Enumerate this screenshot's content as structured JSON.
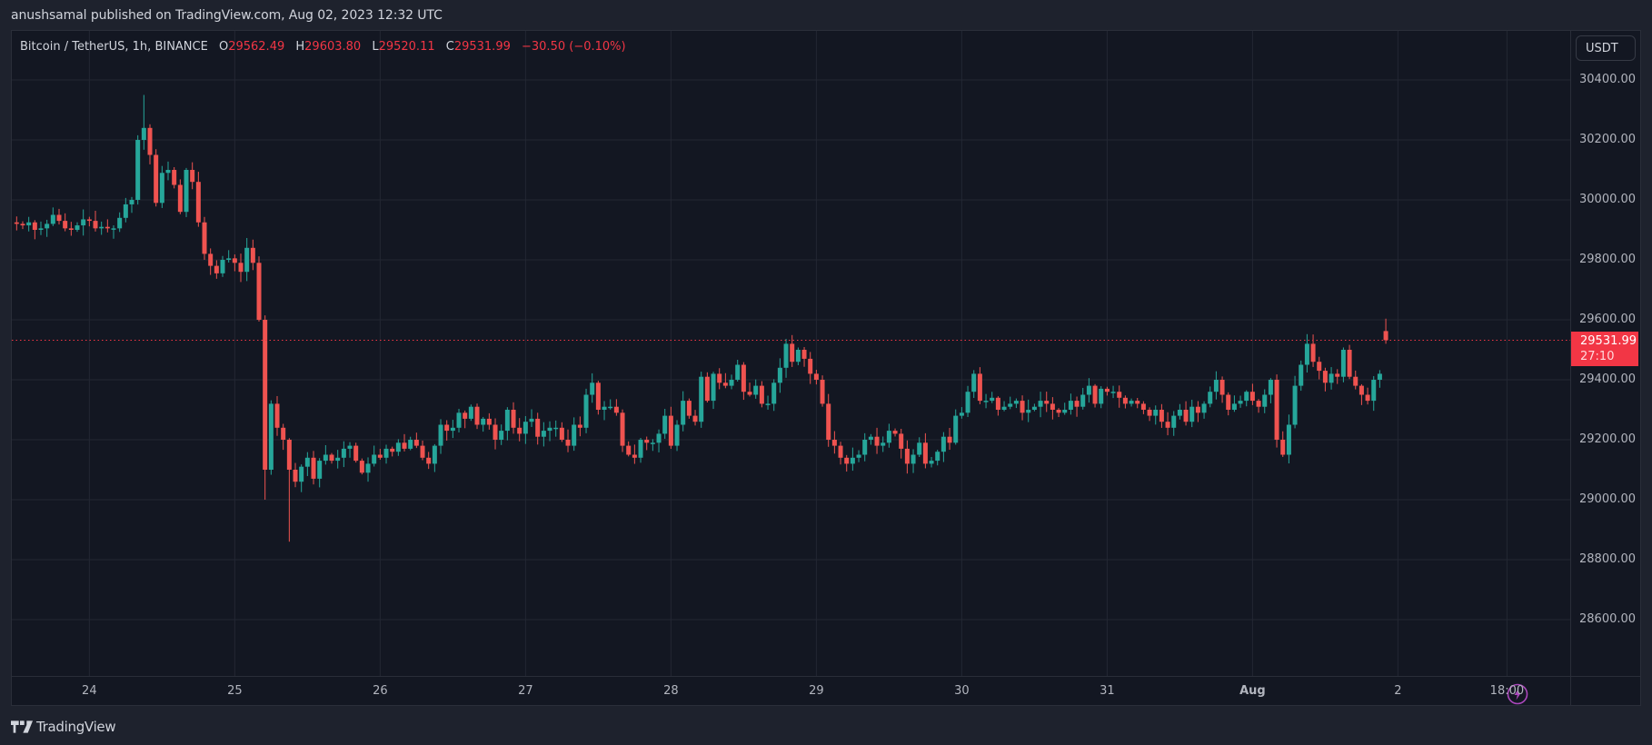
{
  "header": {
    "published_text": "anushsamal published on TradingView.com, Aug 02, 2023 12:32 UTC"
  },
  "legend": {
    "symbol": "Bitcoin / TetherUS, 1h, BINANCE",
    "open_key": "O",
    "open": "29562.49",
    "high_key": "H",
    "high": "29603.80",
    "low_key": "L",
    "low": "29520.11",
    "close_key": "C",
    "close": "29531.99",
    "change": "−30.50 (−0.10%)"
  },
  "currency_button": "USDT",
  "last_price": {
    "value": "29531.99",
    "countdown": "27:10",
    "price": 29531.99
  },
  "colors": {
    "up": "#26a69a",
    "down": "#ef5350",
    "grid": "#232733",
    "background": "#131722",
    "last_price": "#f23645",
    "bolt": "#ab47bc"
  },
  "footer": {
    "brand": "TradingView"
  },
  "icons": {
    "bolt": "lightning-bolt-icon",
    "logo": "tradingview-logo-icon"
  },
  "chart_data": {
    "type": "candlestick",
    "title": "Bitcoin / TetherUS, 1h, BINANCE",
    "symbol": "BTCUSDT",
    "interval": "1h",
    "exchange": "BINANCE",
    "xlabel": "",
    "ylabel": "USDT",
    "ylim": [
      28450,
      30500
    ],
    "y_ticks": [
      "30400.00",
      "30200.00",
      "30000.00",
      "29800.00",
      "29600.00",
      "29400.00",
      "29200.00",
      "29000.00",
      "28800.00",
      "28600.00"
    ],
    "y_tick_values": [
      30400,
      30200,
      30000,
      29800,
      29600,
      29400,
      29200,
      29000,
      28800,
      28600
    ],
    "x_ticks": [
      {
        "label": "24",
        "candle": 12,
        "bold": false
      },
      {
        "label": "25",
        "candle": 36,
        "bold": false
      },
      {
        "label": "26",
        "candle": 60,
        "bold": false
      },
      {
        "label": "27",
        "candle": 84,
        "bold": false
      },
      {
        "label": "28",
        "candle": 108,
        "bold": false
      },
      {
        "label": "29",
        "candle": 132,
        "bold": false
      },
      {
        "label": "30",
        "candle": 156,
        "bold": false
      },
      {
        "label": "31",
        "candle": 180,
        "bold": false
      },
      {
        "label": "Aug",
        "candle": 204,
        "bold": true
      },
      {
        "label": "2",
        "candle": 228,
        "bold": false
      },
      {
        "label": "18:00",
        "candle": 246,
        "bold": false
      }
    ],
    "grid": true,
    "last_ohlc": {
      "open": 29562.49,
      "high": 29603.8,
      "low": 29520.11,
      "close": 29531.99,
      "change": -30.5,
      "change_pct": -0.1
    },
    "closes": [
      29920,
      29915,
      29925,
      29900,
      29905,
      29920,
      29950,
      29930,
      29905,
      29900,
      29915,
      29935,
      29930,
      29905,
      29910,
      29905,
      29905,
      29940,
      29985,
      30000,
      30200,
      30240,
      30150,
      29990,
      30090,
      30100,
      30050,
      29960,
      30100,
      30060,
      29925,
      29820,
      29780,
      29755,
      29800,
      29805,
      29790,
      29760,
      29840,
      29790,
      29600,
      29100,
      29320,
      29240,
      29200,
      29100,
      29060,
      29110,
      29140,
      29070,
      29130,
      29150,
      29130,
      29140,
      29170,
      29180,
      29130,
      29090,
      29120,
      29150,
      29140,
      29170,
      29160,
      29190,
      29170,
      29200,
      29180,
      29140,
      29120,
      29180,
      29250,
      29230,
      29240,
      29290,
      29270,
      29310,
      29250,
      29270,
      29250,
      29200,
      29230,
      29300,
      29240,
      29220,
      29260,
      29270,
      29210,
      29230,
      29240,
      29240,
      29200,
      29180,
      29250,
      29240,
      29350,
      29390,
      29300,
      29310,
      29310,
      29290,
      29180,
      29150,
      29140,
      29200,
      29190,
      29190,
      29220,
      29280,
      29180,
      29250,
      29330,
      29280,
      29260,
      29410,
      29330,
      29420,
      29390,
      29380,
      29400,
      29450,
      29360,
      29350,
      29380,
      29320,
      29320,
      29390,
      29440,
      29520,
      29460,
      29500,
      29470,
      29420,
      29400,
      29320,
      29200,
      29180,
      29140,
      29120,
      29140,
      29150,
      29200,
      29210,
      29180,
      29190,
      29230,
      29220,
      29170,
      29120,
      29150,
      29190,
      29120,
      29130,
      29160,
      29210,
      29190,
      29280,
      29290,
      29360,
      29420,
      29330,
      29330,
      29340,
      29300,
      29310,
      29320,
      29330,
      29290,
      29300,
      29310,
      29330,
      29320,
      29300,
      29290,
      29300,
      29330,
      29310,
      29350,
      29380,
      29320,
      29370,
      29360,
      29360,
      29340,
      29320,
      29330,
      29320,
      29300,
      29280,
      29300,
      29260,
      29240,
      29280,
      29300,
      29260,
      29310,
      29290,
      29320,
      29360,
      29400,
      29350,
      29300,
      29320,
      29330,
      29360,
      29330,
      29310,
      29350,
      29400,
      29200,
      29150,
      29250,
      29380,
      29450,
      29520,
      29460,
      29430,
      29390,
      29420,
      29410,
      29500,
      29410,
      29380,
      29350,
      29330,
      29400,
      29420,
      29380
    ]
  }
}
